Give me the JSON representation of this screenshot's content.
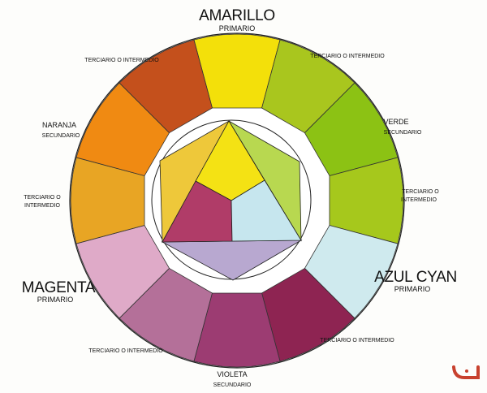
{
  "labels": {
    "amarillo": {
      "name": "AMARILLO",
      "type": "PRIMARIO"
    },
    "naranja": {
      "name": "NARANJA",
      "type": "SECUNDARIO"
    },
    "verde": {
      "name": "VERDE",
      "type": "SECUNDARIO"
    },
    "magenta": {
      "name": "MAGENTA",
      "type": "PRIMARIO"
    },
    "azul_cyan": {
      "name": "AZUL CYAN",
      "type": "PRIMARIO"
    },
    "violeta": {
      "name": "VIOLETA",
      "type": "SECUNDARIO"
    },
    "tertiary_top_left": "TERCIARIO O INTERMEDIO",
    "tertiary_top_right": "TERCIARIO O INTERMEDIO",
    "tertiary_left": {
      "line1": "TERCIARIO O",
      "line2": "INTERMEDIO"
    },
    "tertiary_right": {
      "line1": "TERCIARIO O",
      "line2": "INTERMEDIO"
    },
    "tertiary_bottom_left": "TERCIARIO O INTERMEDIO",
    "tertiary_bottom_right": "TERCIARIO O INTERMEDIO"
  },
  "wheel_colors": [
    "#f3e00a",
    "#a9c61e",
    "#8cc214",
    "#a6c81c",
    "#cfeaee",
    "#8e2452",
    "#9c3c72",
    "#b47099",
    "#dfaac8",
    "#e8a524",
    "#f08a12",
    "#c4501c"
  ],
  "center_colors": {
    "yellow": "#f4e214",
    "magenta": "#b03c68",
    "cyan": "#c6e6ee",
    "hex_left": "#eec83a",
    "hex_right": "#b8d850",
    "hex_bottom": "#b8a8d0"
  },
  "logo_color": "#c8412e"
}
